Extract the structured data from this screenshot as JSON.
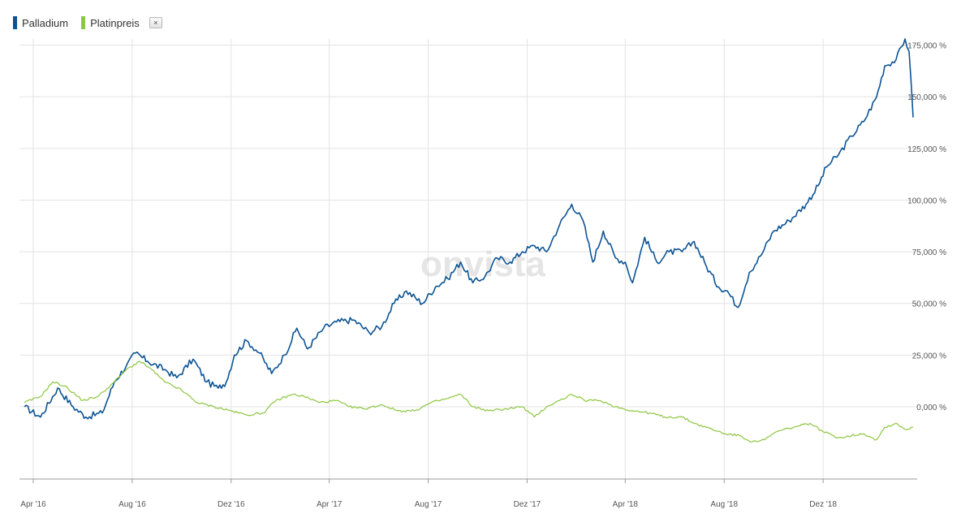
{
  "legend": {
    "items": [
      {
        "label": "Palladium",
        "color": "#0b5394"
      },
      {
        "label": "Platinpreis",
        "color": "#8dc63f"
      }
    ],
    "close_icon": "close-icon",
    "close_glyph": "×"
  },
  "watermark": "onvista",
  "chart_data": {
    "type": "line",
    "y_unit": "%",
    "ylim": [
      -35,
      178
    ],
    "y_ticks": [
      0,
      25,
      50,
      75,
      100,
      125,
      150,
      175
    ],
    "y_tick_labels": [
      "0,000 %",
      "25,000 %",
      "50,000 %",
      "75,000 %",
      "100,000 %",
      "125,000 %",
      "150,000 %",
      "175,000 %"
    ],
    "x_range": [
      "2016-03",
      "2019-03"
    ],
    "x_ticks": [
      "2016-04",
      "2016-08",
      "2016-12",
      "2017-04",
      "2017-08",
      "2017-12",
      "2018-04",
      "2018-08",
      "2018-12"
    ],
    "x_tick_labels": [
      "Apr '16",
      "Aug '16",
      "Dez '16",
      "Apr '17",
      "Aug '17",
      "Dez '17",
      "Apr '18",
      "Aug '18",
      "Dez '18"
    ],
    "grid": true,
    "legend_position": "top-left",
    "series": [
      {
        "name": "Palladium",
        "color": "#0b5394",
        "points": [
          [
            "2016-03-21",
            0
          ],
          [
            "2016-04-10",
            -5
          ],
          [
            "2016-05-01",
            9
          ],
          [
            "2016-05-20",
            0
          ],
          [
            "2016-06-05",
            -5
          ],
          [
            "2016-06-25",
            -3
          ],
          [
            "2016-07-10",
            12
          ],
          [
            "2016-07-25",
            20
          ],
          [
            "2016-08-05",
            26
          ],
          [
            "2016-08-20",
            22
          ],
          [
            "2016-09-10",
            18
          ],
          [
            "2016-09-25",
            14
          ],
          [
            "2016-10-15",
            23
          ],
          [
            "2016-11-01",
            12
          ],
          [
            "2016-11-15",
            9
          ],
          [
            "2016-11-25",
            12
          ],
          [
            "2016-12-05",
            25
          ],
          [
            "2016-12-20",
            32
          ],
          [
            "2017-01-05",
            26
          ],
          [
            "2017-01-20",
            16
          ],
          [
            "2017-02-05",
            25
          ],
          [
            "2017-02-20",
            38
          ],
          [
            "2017-03-05",
            28
          ],
          [
            "2017-03-25",
            38
          ],
          [
            "2017-04-10",
            41
          ],
          [
            "2017-05-01",
            42
          ],
          [
            "2017-05-20",
            36
          ],
          [
            "2017-06-05",
            39
          ],
          [
            "2017-06-20",
            50
          ],
          [
            "2017-07-05",
            56
          ],
          [
            "2017-07-25",
            50
          ],
          [
            "2017-08-10",
            58
          ],
          [
            "2017-08-25",
            62
          ],
          [
            "2017-09-10",
            70
          ],
          [
            "2017-09-25",
            60
          ],
          [
            "2017-10-10",
            63
          ],
          [
            "2017-10-25",
            72
          ],
          [
            "2017-11-10",
            70
          ],
          [
            "2017-11-25",
            75
          ],
          [
            "2017-12-10",
            78
          ],
          [
            "2017-12-25",
            75
          ],
          [
            "2018-01-10",
            88
          ],
          [
            "2018-01-25",
            98
          ],
          [
            "2018-02-08",
            90
          ],
          [
            "2018-02-20",
            70
          ],
          [
            "2018-03-05",
            85
          ],
          [
            "2018-03-20",
            72
          ],
          [
            "2018-04-01",
            70
          ],
          [
            "2018-04-10",
            60
          ],
          [
            "2018-04-25",
            82
          ],
          [
            "2018-05-10",
            70
          ],
          [
            "2018-05-25",
            75
          ],
          [
            "2018-06-10",
            75
          ],
          [
            "2018-06-25",
            80
          ],
          [
            "2018-07-10",
            68
          ],
          [
            "2018-07-25",
            58
          ],
          [
            "2018-08-05",
            56
          ],
          [
            "2018-08-18",
            48
          ],
          [
            "2018-09-01",
            65
          ],
          [
            "2018-09-15",
            73
          ],
          [
            "2018-10-01",
            85
          ],
          [
            "2018-10-20",
            90
          ],
          [
            "2018-11-10",
            98
          ],
          [
            "2018-11-25",
            107
          ],
          [
            "2018-12-05",
            116
          ],
          [
            "2018-12-20",
            122
          ],
          [
            "2019-01-05",
            131
          ],
          [
            "2019-01-20",
            138
          ],
          [
            "2019-02-05",
            150
          ],
          [
            "2019-02-15",
            165
          ],
          [
            "2019-03-01",
            168
          ],
          [
            "2019-03-12",
            178
          ],
          [
            "2019-03-17",
            172
          ],
          [
            "2019-03-22",
            140
          ]
        ]
      },
      {
        "name": "Platinpreis",
        "color": "#8dc63f",
        "points": [
          [
            "2016-03-21",
            2
          ],
          [
            "2016-04-10",
            5
          ],
          [
            "2016-04-25",
            12
          ],
          [
            "2016-05-10",
            10
          ],
          [
            "2016-06-01",
            3
          ],
          [
            "2016-06-20",
            5
          ],
          [
            "2016-07-10",
            12
          ],
          [
            "2016-07-25",
            18
          ],
          [
            "2016-08-10",
            22
          ],
          [
            "2016-08-25",
            18
          ],
          [
            "2016-09-10",
            12
          ],
          [
            "2016-10-01",
            8
          ],
          [
            "2016-10-20",
            2
          ],
          [
            "2016-11-10",
            0
          ],
          [
            "2016-12-01",
            -2
          ],
          [
            "2016-12-20",
            -4
          ],
          [
            "2017-01-10",
            -3
          ],
          [
            "2017-01-25",
            3
          ],
          [
            "2017-02-15",
            6
          ],
          [
            "2017-03-01",
            5
          ],
          [
            "2017-03-20",
            2
          ],
          [
            "2017-04-10",
            3
          ],
          [
            "2017-04-25",
            0
          ],
          [
            "2017-05-15",
            -1
          ],
          [
            "2017-06-05",
            1
          ],
          [
            "2017-06-25",
            -2
          ],
          [
            "2017-07-15",
            -2
          ],
          [
            "2017-08-05",
            2
          ],
          [
            "2017-08-25",
            4
          ],
          [
            "2017-09-10",
            6
          ],
          [
            "2017-09-25",
            0
          ],
          [
            "2017-10-15",
            -2
          ],
          [
            "2017-11-05",
            -1
          ],
          [
            "2017-11-25",
            0
          ],
          [
            "2017-12-10",
            -5
          ],
          [
            "2017-12-25",
            0
          ],
          [
            "2018-01-10",
            3
          ],
          [
            "2018-01-25",
            6
          ],
          [
            "2018-02-10",
            3
          ],
          [
            "2018-03-01",
            3
          ],
          [
            "2018-03-20",
            0
          ],
          [
            "2018-04-10",
            -2
          ],
          [
            "2018-05-01",
            -3
          ],
          [
            "2018-05-20",
            -5
          ],
          [
            "2018-06-10",
            -5
          ],
          [
            "2018-06-25",
            -8
          ],
          [
            "2018-07-10",
            -10
          ],
          [
            "2018-08-01",
            -13
          ],
          [
            "2018-08-20",
            -14
          ],
          [
            "2018-09-05",
            -17
          ],
          [
            "2018-09-20",
            -16
          ],
          [
            "2018-10-05",
            -12
          ],
          [
            "2018-10-25",
            -10
          ],
          [
            "2018-11-15",
            -8
          ],
          [
            "2018-12-01",
            -12
          ],
          [
            "2018-12-20",
            -15
          ],
          [
            "2019-01-05",
            -14
          ],
          [
            "2019-01-20",
            -13
          ],
          [
            "2019-02-05",
            -16
          ],
          [
            "2019-02-15",
            -10
          ],
          [
            "2019-03-01",
            -8
          ],
          [
            "2019-03-12",
            -11
          ],
          [
            "2019-03-22",
            -10
          ]
        ]
      }
    ]
  }
}
